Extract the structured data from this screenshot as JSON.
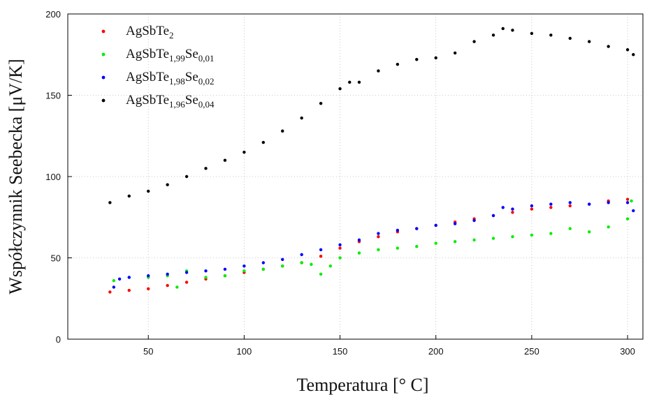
{
  "chart_data": {
    "type": "scatter",
    "title": "",
    "xlabel": "Temperatura [° C]",
    "ylabel": "Współczynnik Seebecka [μV/K]",
    "xlim": [
      8,
      308
    ],
    "ylim": [
      0,
      200
    ],
    "xticks": [
      50,
      100,
      150,
      200,
      250,
      300
    ],
    "yticks": [
      0,
      50,
      100,
      150,
      200
    ],
    "legend_position": "top-left",
    "grid": true,
    "series": [
      {
        "name": "AgSbTe2",
        "name_base": "AgSbTe",
        "name_sub": "2",
        "color": "#ff0000",
        "x": [
          30,
          40,
          50,
          60,
          70,
          80,
          90,
          100,
          110,
          120,
          130,
          140,
          150,
          160,
          170,
          180,
          190,
          200,
          210,
          220,
          230,
          240,
          250,
          260,
          270,
          280,
          290,
          300
        ],
        "y": [
          29,
          30,
          31,
          33,
          35,
          37,
          39,
          41,
          43,
          45,
          47,
          51,
          56,
          60,
          63,
          66,
          68,
          70,
          72,
          74,
          76,
          78,
          80,
          81,
          82,
          83,
          85,
          86
        ]
      },
      {
        "name": "AgSbTe1,99Se0,01",
        "name_base": "AgSbTe",
        "name_sub": "1,99",
        "name_mid": "Se",
        "name_sub2": "0,01",
        "color": "#00ee00",
        "x": [
          32,
          40,
          50,
          60,
          65,
          70,
          80,
          90,
          100,
          110,
          120,
          130,
          135,
          140,
          145,
          150,
          160,
          170,
          180,
          190,
          200,
          210,
          220,
          230,
          240,
          250,
          260,
          270,
          280,
          290,
          300,
          302
        ],
        "y": [
          36,
          38,
          38,
          39,
          32,
          42,
          38,
          39,
          42,
          43,
          45,
          47,
          46,
          40,
          45,
          50,
          53,
          55,
          56,
          57,
          59,
          60,
          61,
          62,
          63,
          64,
          65,
          68,
          66,
          69,
          74,
          85
        ]
      },
      {
        "name": "AgSbTe1,98Se0,02",
        "name_base": "AgSbTe",
        "name_sub": "1,98",
        "name_mid": "Se",
        "name_sub2": "0,02",
        "color": "#0000ff",
        "x": [
          32,
          35,
          40,
          50,
          60,
          70,
          80,
          90,
          100,
          110,
          120,
          130,
          140,
          150,
          160,
          170,
          180,
          190,
          200,
          210,
          220,
          230,
          235,
          240,
          250,
          260,
          270,
          280,
          290,
          300,
          303
        ],
        "y": [
          32,
          37,
          38,
          39,
          40,
          41,
          42,
          43,
          45,
          47,
          49,
          52,
          55,
          58,
          61,
          65,
          67,
          68,
          70,
          71,
          73,
          76,
          81,
          80,
          82,
          83,
          84,
          83,
          84,
          84,
          79
        ]
      },
      {
        "name": "AgSbTe1,96Se0,04",
        "name_base": "AgSbTe",
        "name_sub": "1,96",
        "name_mid": "Se",
        "name_sub2": "0,04",
        "color": "#000000",
        "x": [
          30,
          40,
          50,
          60,
          70,
          80,
          90,
          100,
          110,
          120,
          130,
          140,
          150,
          155,
          160,
          170,
          180,
          190,
          200,
          210,
          220,
          230,
          235,
          240,
          250,
          260,
          270,
          280,
          290,
          300,
          303
        ],
        "y": [
          84,
          88,
          91,
          95,
          100,
          105,
          110,
          115,
          121,
          128,
          136,
          145,
          154,
          158,
          158,
          165,
          169,
          172,
          173,
          176,
          183,
          187,
          191,
          190,
          188,
          187,
          185,
          183,
          180,
          178,
          175
        ]
      }
    ]
  }
}
